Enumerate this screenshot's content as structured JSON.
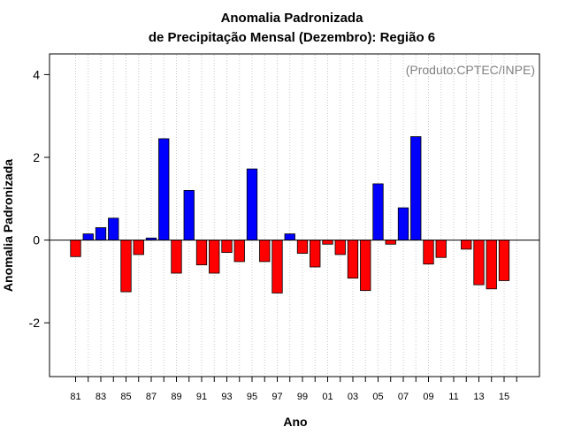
{
  "chart_data": {
    "type": "bar",
    "title": "Anomalia Padronizada",
    "subtitle": "de Precipitação Mensal (Dezembro): Região 6",
    "xlabel": "Ano",
    "ylabel": "Anomalia Padronizada",
    "credit": "(Produto:CPTEC/INPE)",
    "ylim": [
      -3.3,
      4.5
    ],
    "yticks": [
      -2,
      0,
      2,
      4
    ],
    "ytick_labels": [
      "-2",
      "0",
      "2",
      "4"
    ],
    "xtick_labels": [
      "81",
      "83",
      "85",
      "87",
      "89",
      "91",
      "93",
      "95",
      "97",
      "99",
      "01",
      "03",
      "05",
      "07",
      "09",
      "11",
      "13",
      "15"
    ],
    "grid": "vertical dotted",
    "positive_color": "#0000ff",
    "negative_color": "#ff0000",
    "categories": [
      "81",
      "82",
      "83",
      "84",
      "85",
      "86",
      "87",
      "88",
      "89",
      "90",
      "91",
      "92",
      "93",
      "94",
      "95",
      "96",
      "97",
      "98",
      "99",
      "00",
      "01",
      "02",
      "03",
      "04",
      "05",
      "06",
      "07",
      "08",
      "09",
      "10",
      "11",
      "12",
      "13",
      "14",
      "15",
      "16"
    ],
    "values": [
      -0.4,
      0.15,
      0.3,
      0.53,
      -1.25,
      -0.35,
      0.05,
      2.45,
      -0.8,
      1.2,
      -0.6,
      -0.8,
      -0.3,
      -0.52,
      1.72,
      -0.52,
      -1.28,
      0.15,
      -0.32,
      -0.65,
      -0.1,
      -0.35,
      -0.92,
      -1.22,
      1.36,
      -0.1,
      0.78,
      2.5,
      -0.58,
      -0.42,
      0,
      -0.22,
      -1.08,
      -1.18,
      -0.98,
      0
    ]
  }
}
